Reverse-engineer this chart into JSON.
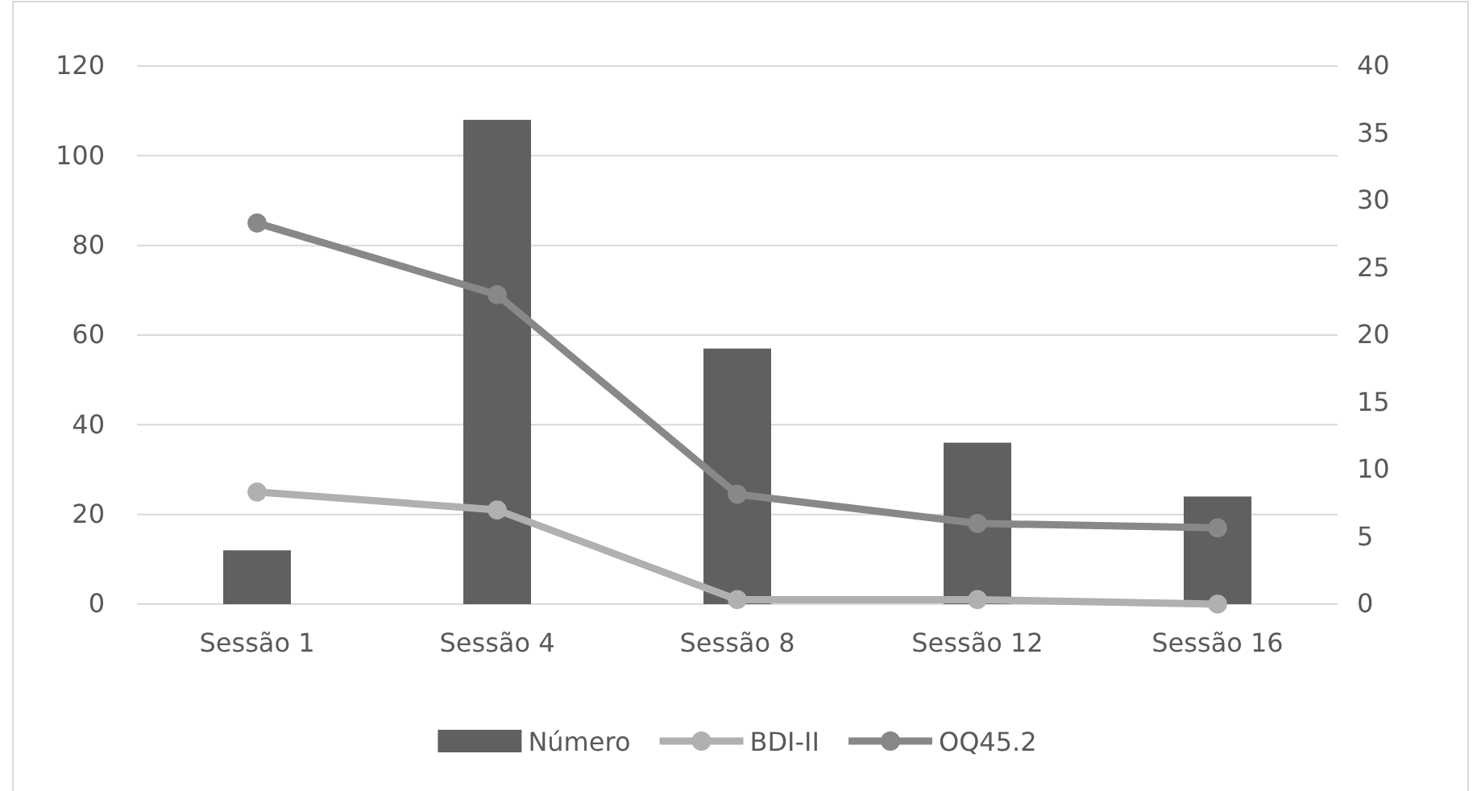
{
  "chart_data": {
    "type": "bar",
    "categories": [
      "Sessão 1",
      "Sessão 4",
      "Sessão 8",
      "Sessão 12",
      "Sessão 16"
    ],
    "series": [
      {
        "name": "Número",
        "color": "#606060",
        "values": [
          12,
          108,
          57,
          36,
          24
        ]
      },
      {
        "name": "BDI-II",
        "type": "line",
        "color": "#b0b0b0",
        "values": [
          25,
          21,
          1,
          1,
          0
        ]
      },
      {
        "name": "OQ45.2",
        "type": "line",
        "color": "#888888",
        "values": [
          85,
          69,
          24.5,
          18,
          17
        ]
      }
    ],
    "ylim": [
      0,
      120
    ],
    "yticks": [
      0,
      20,
      40,
      60,
      80,
      100,
      120
    ],
    "y2lim": [
      0,
      40
    ],
    "y2ticks": [
      0,
      5,
      10,
      15,
      20,
      25,
      30,
      35,
      40
    ],
    "grid": "y",
    "legend": "bottom",
    "marker": "circle"
  }
}
